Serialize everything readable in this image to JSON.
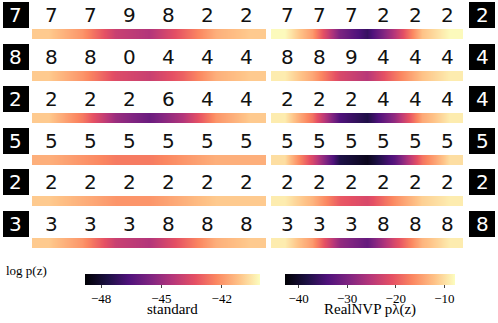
{
  "chart_data": {
    "type": "heatmap",
    "colorbar_label": "log p(z)",
    "rows": [
      {
        "source": "7",
        "target": "2"
      },
      {
        "source": "8",
        "target": "4"
      },
      {
        "source": "2",
        "target": "4"
      },
      {
        "source": "5",
        "target": "5"
      },
      {
        "source": "2",
        "target": "2"
      },
      {
        "source": "3",
        "target": "8"
      }
    ],
    "panels": [
      {
        "title": "standard",
        "zlim": [
          -48.8,
          -40.1
        ],
        "zticks": [
          -48,
          -45,
          -42
        ],
        "frames": [
          [
            "7",
            "7",
            "9",
            "8",
            "2",
            "2"
          ],
          [
            "8",
            "8",
            "0",
            "4",
            "4",
            "4"
          ],
          [
            "2",
            "2",
            "2",
            "6",
            "4",
            "4"
          ],
          [
            "5",
            "5",
            "5",
            "5",
            "5",
            "5"
          ],
          [
            "2",
            "2",
            "2",
            "2",
            "2",
            "2"
          ],
          [
            "3",
            "3",
            "3",
            "8",
            "8",
            "8"
          ]
        ],
        "values": [
          [
            -41,
            -42,
            -44,
            -44.5,
            -43,
            -41.5,
            -41
          ],
          [
            -41,
            -42,
            -43.5,
            -44,
            -43,
            -41.5,
            -41
          ],
          [
            -41,
            -42.5,
            -45,
            -46,
            -44.5,
            -42,
            -41
          ],
          [
            -41.5,
            -42,
            -42.5,
            -42.5,
            -42,
            -41.5,
            -41.5
          ],
          [
            -41,
            -41.5,
            -42,
            -42,
            -41.5,
            -41,
            -41
          ],
          [
            -41,
            -42,
            -44,
            -44.5,
            -43,
            -41.5,
            -41
          ]
        ]
      },
      {
        "title": "RealNVP pλ(z)",
        "zlim": [
          -42.8,
          -7.8
        ],
        "zticks": [
          -40,
          -30,
          -20,
          -10
        ],
        "frames": [
          [
            "7",
            "7",
            "7",
            "2",
            "2",
            "2"
          ],
          [
            "8",
            "8",
            "9",
            "4",
            "4",
            "4"
          ],
          [
            "2",
            "2",
            "2",
            "4",
            "4",
            "4"
          ],
          [
            "5",
            "5",
            "5",
            "5",
            "5",
            "5"
          ],
          [
            "2",
            "2",
            "2",
            "2",
            "2",
            "2"
          ],
          [
            "3",
            "3",
            "3",
            "8",
            "8",
            "8"
          ]
        ],
        "values": [
          [
            -8,
            -15,
            -30,
            -36,
            -25,
            -12,
            -8
          ],
          [
            -9,
            -14,
            -22,
            -25,
            -18,
            -12,
            -9
          ],
          [
            -9,
            -18,
            -34,
            -38,
            -28,
            -14,
            -9
          ],
          [
            -10,
            -22,
            -38,
            -41,
            -33,
            -18,
            -10
          ],
          [
            -9,
            -13,
            -20,
            -22,
            -16,
            -11,
            -9
          ],
          [
            -9,
            -15,
            -28,
            -32,
            -22,
            -13,
            -9
          ]
        ]
      }
    ]
  }
}
